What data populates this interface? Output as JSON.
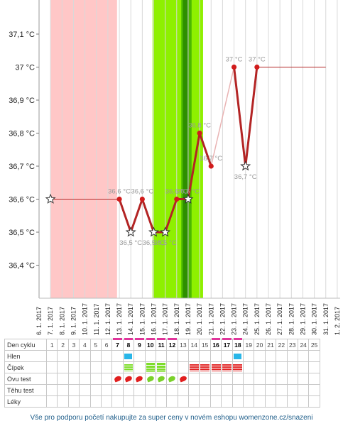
{
  "chart_data": {
    "type": "line",
    "title": "",
    "ylabel": "",
    "xlabel": "",
    "ylim": [
      36.3,
      37.2
    ],
    "y_ticks": [
      "37,1 °C",
      "37 °C",
      "36,9 °C",
      "36,8 °C",
      "36,7 °C",
      "36,6 °C",
      "36,5 °C",
      "36,4 °C"
    ],
    "x_dates": [
      "6. 1. 2017",
      "7. 1. 2017",
      "8. 1. 2017",
      "9. 1. 2017",
      "10. 1. 2017",
      "11. 1. 2017",
      "12. 1. 2017",
      "13. 1. 2017",
      "14. 1. 2017",
      "15. 1. 2017",
      "16. 1. 2017",
      "17. 1. 2017",
      "18. 1. 2017",
      "19. 1. 2017",
      "20. 1. 2017",
      "21. 1. 2017",
      "22. 1. 2017",
      "23. 1. 2017",
      "24. 1. 2017",
      "25. 1. 2017",
      "26. 1. 2017",
      "27. 1. 2017",
      "28. 1. 2017",
      "29. 1. 2017",
      "30. 1. 2017",
      "31. 1. 2017",
      "1. 2. 2017"
    ],
    "bands": [
      {
        "kind": "menstruation",
        "from": 1,
        "to": 6.8,
        "color": "#ffc7c7"
      },
      {
        "kind": "fertile",
        "from": 9.9,
        "to": 14.3,
        "color": "#8ef000"
      },
      {
        "kind": "peak",
        "from": 12.4,
        "to": 13.3,
        "color": "#4cb800"
      },
      {
        "kind": "peak-core",
        "from": 12.55,
        "to": 13.05,
        "color": "#2e8f00"
      }
    ],
    "points": [
      {
        "x": 1,
        "y": 36.6,
        "star": true,
        "label": ""
      },
      {
        "x": 7,
        "y": 36.6,
        "star": false,
        "label": "36,6 °C"
      },
      {
        "x": 8,
        "y": 36.5,
        "star": true,
        "label": "36,5 °C"
      },
      {
        "x": 9,
        "y": 36.6,
        "star": false,
        "label": "36,6 °C"
      },
      {
        "x": 10,
        "y": 36.5,
        "star": true,
        "label": "36,5 °C"
      },
      {
        "x": 11,
        "y": 36.5,
        "star": true,
        "label": "36,5 °C"
      },
      {
        "x": 12,
        "y": 36.6,
        "star": false,
        "label": "36,6 °C"
      },
      {
        "x": 13,
        "y": 36.6,
        "star": true,
        "label": "36,6 °C"
      },
      {
        "x": 14,
        "y": 36.8,
        "star": false,
        "label": "36,8 °C"
      },
      {
        "x": 15,
        "y": 36.7,
        "star": false,
        "label": "36,7 °C"
      },
      {
        "x": 17,
        "y": 37.0,
        "star": false,
        "label": "37 °C"
      },
      {
        "x": 18,
        "y": 36.7,
        "star": true,
        "label": "36,7 °C"
      },
      {
        "x": 19,
        "y": 37.0,
        "star": false,
        "label": "37 °C"
      }
    ],
    "flat_until": 25
  },
  "table": {
    "rows": [
      "Den cyklu",
      "Hlen",
      "Čípek",
      "Ovu test",
      "Těhu test",
      "Léky"
    ],
    "days": [
      "1",
      "2",
      "3",
      "4",
      "5",
      "6",
      "7",
      "8",
      "9",
      "10",
      "11",
      "12",
      "13",
      "14",
      "15",
      "16",
      "17",
      "18",
      "19",
      "20",
      "21",
      "22",
      "23",
      "24",
      "25"
    ],
    "highlight_days": [
      7,
      8,
      9,
      10,
      11,
      12,
      16,
      17,
      18
    ],
    "mucus_days": [
      8,
      18
    ],
    "cervix_green": [
      8,
      10,
      11
    ],
    "cervix_red": [
      14,
      15,
      16,
      17,
      18
    ],
    "ovu_tests": [
      {
        "day": 7,
        "color": "#e11f1f"
      },
      {
        "day": 8,
        "color": "#e11f1f"
      },
      {
        "day": 9,
        "color": "#e11f1f"
      },
      {
        "day": 10,
        "color": "#7ad12a"
      },
      {
        "day": 11,
        "color": "#7ad12a"
      },
      {
        "day": 12,
        "color": "#7ad12a"
      },
      {
        "day": 13,
        "color": "#e11f1f"
      }
    ]
  },
  "footer": "Vše pro podporu početí nakupujte za super ceny v novém eshopu womenzone.cz/snazeni"
}
